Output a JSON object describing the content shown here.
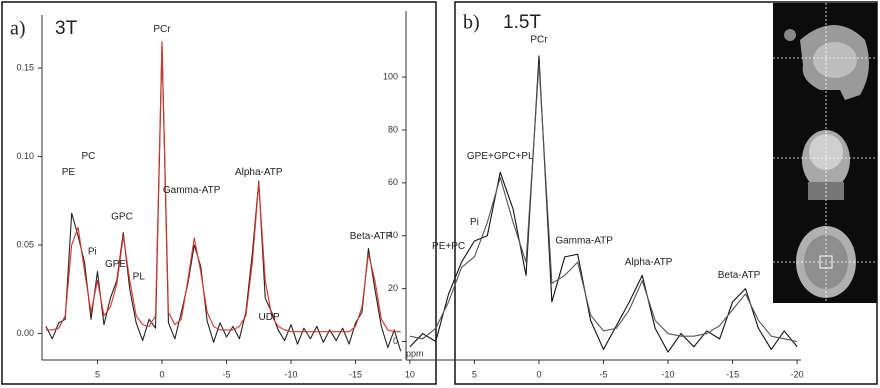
{
  "chart_data": [
    {
      "type": "line",
      "panel_label": "a)",
      "title": "3T",
      "xlabel": "ppm",
      "xlim": [
        9.3,
        -18.6
      ],
      "ylim": [
        -0.015,
        0.18
      ],
      "xticks": [
        5,
        0,
        -5,
        -10,
        -15
      ],
      "yticks": [
        {
          "value": 0,
          "label": "0.00"
        },
        0.05,
        {
          "value": 0.1,
          "label": "0.10"
        },
        0.15
      ],
      "x": [
        9,
        8.5,
        8,
        7.5,
        7,
        6.5,
        6,
        5.5,
        5,
        4.5,
        4,
        3.5,
        3,
        2.5,
        2,
        1.5,
        1,
        0.5,
        0,
        -0.5,
        -1,
        -1.5,
        -2,
        -2.5,
        -3,
        -3.5,
        -4,
        -4.5,
        -5,
        -5.5,
        -6,
        -6.5,
        -7,
        -7.5,
        -8,
        -8.5,
        -9,
        -9.5,
        -10,
        -10.5,
        -11,
        -11.5,
        -12,
        -12.5,
        -13,
        -13.5,
        -14,
        -14.5,
        -15,
        -15.5,
        -16,
        -16.5,
        -17,
        -17.5,
        -18,
        -18.5
      ],
      "series": [
        {
          "color": "#222222",
          "values": [
            0.004,
            -0.003,
            0.006,
            0.008,
            0.068,
            0.055,
            0.04,
            0.008,
            0.035,
            0.005,
            0.02,
            0.03,
            0.057,
            0.025,
            0.006,
            -0.004,
            0.008,
            0.003,
            0.163,
            0.006,
            -0.003,
            0.012,
            0.028,
            0.05,
            0.038,
            0.007,
            -0.005,
            0.006,
            -0.002,
            0.004,
            -0.003,
            0.012,
            0.045,
            0.086,
            0.02,
            0.012,
            0.002,
            -0.004,
            0.005,
            -0.006,
            0.003,
            -0.003,
            0.004,
            -0.005,
            0.002,
            -0.004,
            0.003,
            -0.006,
            0.006,
            0.012,
            0.048,
            0.025,
            0.004,
            -0.008,
            0.002,
            -0.01
          ]
        },
        {
          "color": "#d9352b",
          "values": [
            0.002,
            0.002,
            0.003,
            0.01,
            0.05,
            0.06,
            0.035,
            0.012,
            0.03,
            0.01,
            0.015,
            0.028,
            0.055,
            0.03,
            0.01,
            0.005,
            0.004,
            0.01,
            0.165,
            0.012,
            0.005,
            0.008,
            0.03,
            0.054,
            0.035,
            0.012,
            0.004,
            0.002,
            0.002,
            0.002,
            0.004,
            0.01,
            0.04,
            0.085,
            0.03,
            0.01,
            0.004,
            0.002,
            0.001,
            0.001,
            0.001,
            0.001,
            0.001,
            0.001,
            0.001,
            0.001,
            0.001,
            0.001,
            0.004,
            0.015,
            0.045,
            0.03,
            0.008,
            0.002,
            0.001,
            0.001
          ]
        }
      ],
      "annotations": [
        {
          "text": "PCr",
          "x": 0,
          "y": 0.172
        },
        {
          "text": "PE",
          "x": 7.25,
          "y": 0.091
        },
        {
          "text": "PC",
          "x": 5.7,
          "y": 0.1
        },
        {
          "text": "Pi",
          "x": 5.4,
          "y": 0.046
        },
        {
          "text": "GPE",
          "x": 3.6,
          "y": 0.039
        },
        {
          "text": "GPC",
          "x": 3.1,
          "y": 0.066
        },
        {
          "text": "PL",
          "x": 1.8,
          "y": 0.032
        },
        {
          "text": "Gamma-ATP",
          "x": -2.3,
          "y": 0.081
        },
        {
          "text": "Alpha-ATP",
          "x": -7.5,
          "y": 0.091
        },
        {
          "text": "UDP",
          "x": -8.3,
          "y": 0.009
        },
        {
          "text": "Beta-ATP",
          "x": -16.2,
          "y": 0.055
        }
      ]
    },
    {
      "type": "line",
      "panel_label": "b)",
      "title": "1.5T",
      "xlim": [
        10.3,
        -20.3
      ],
      "ylim": [
        -7,
        125
      ],
      "xticks": [
        10,
        5,
        0,
        -5,
        -10,
        -15,
        -20
      ],
      "yticks": [
        0,
        20,
        40,
        60,
        80,
        100
      ],
      "x": [
        10,
        9,
        8,
        7,
        6,
        5,
        4,
        3,
        2,
        1,
        0,
        -1,
        -2,
        -3,
        -4,
        -5,
        -6,
        -7,
        -8,
        -9,
        -10,
        -11,
        -12,
        -13,
        -14,
        -15,
        -16,
        -17,
        -18,
        -19,
        -20
      ],
      "series": [
        {
          "color": "#111111",
          "values": [
            -2,
            3,
            0,
            18,
            30,
            38,
            40,
            64,
            50,
            25,
            108,
            15,
            32,
            33,
            8,
            -3,
            6,
            15,
            25,
            5,
            -4,
            3,
            -2,
            4,
            1,
            15,
            20,
            5,
            -3,
            4,
            -2
          ]
        },
        {
          "color": "#555555",
          "values": [
            2,
            1,
            5,
            15,
            28,
            32,
            45,
            62,
            45,
            30,
            105,
            22,
            25,
            30,
            10,
            4,
            5,
            12,
            23,
            8,
            3,
            2,
            2,
            3,
            6,
            12,
            18,
            8,
            2,
            1,
            0
          ]
        }
      ],
      "annotations": [
        {
          "text": "PCr",
          "x": 0,
          "y": 114
        },
        {
          "text": "GPE+GPC+PL",
          "x": 3,
          "y": 70
        },
        {
          "text": "Pi",
          "x": 5,
          "y": 45
        },
        {
          "text": "PE+PC",
          "x": 7,
          "y": 36
        },
        {
          "text": "Gamma-ATP",
          "x": -3.5,
          "y": 38
        },
        {
          "text": "Alpha-ATP",
          "x": -8.5,
          "y": 30
        },
        {
          "text": "Beta-ATP",
          "x": -15.5,
          "y": 25
        }
      ]
    }
  ]
}
